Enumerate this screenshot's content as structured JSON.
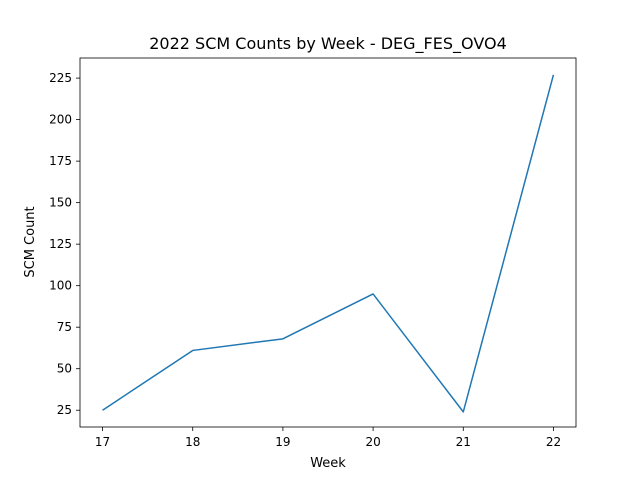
{
  "chart_data": {
    "type": "line",
    "title": "2022 SCM Counts by Week - DEG_FES_OVO4",
    "xlabel": "Week",
    "ylabel": "SCM Count",
    "x": [
      17,
      18,
      19,
      20,
      21,
      22
    ],
    "series": [
      {
        "values": [
          25,
          61,
          68,
          95,
          24,
          227
        ]
      }
    ],
    "xticks": [
      17,
      18,
      19,
      20,
      21,
      22
    ],
    "yticks": [
      25,
      50,
      75,
      100,
      125,
      150,
      175,
      200,
      225
    ],
    "xlim": [
      16.75,
      22.25
    ],
    "ylim": [
      14.9,
      237.1
    ],
    "grid": false,
    "line_color": "#1f77b4"
  }
}
